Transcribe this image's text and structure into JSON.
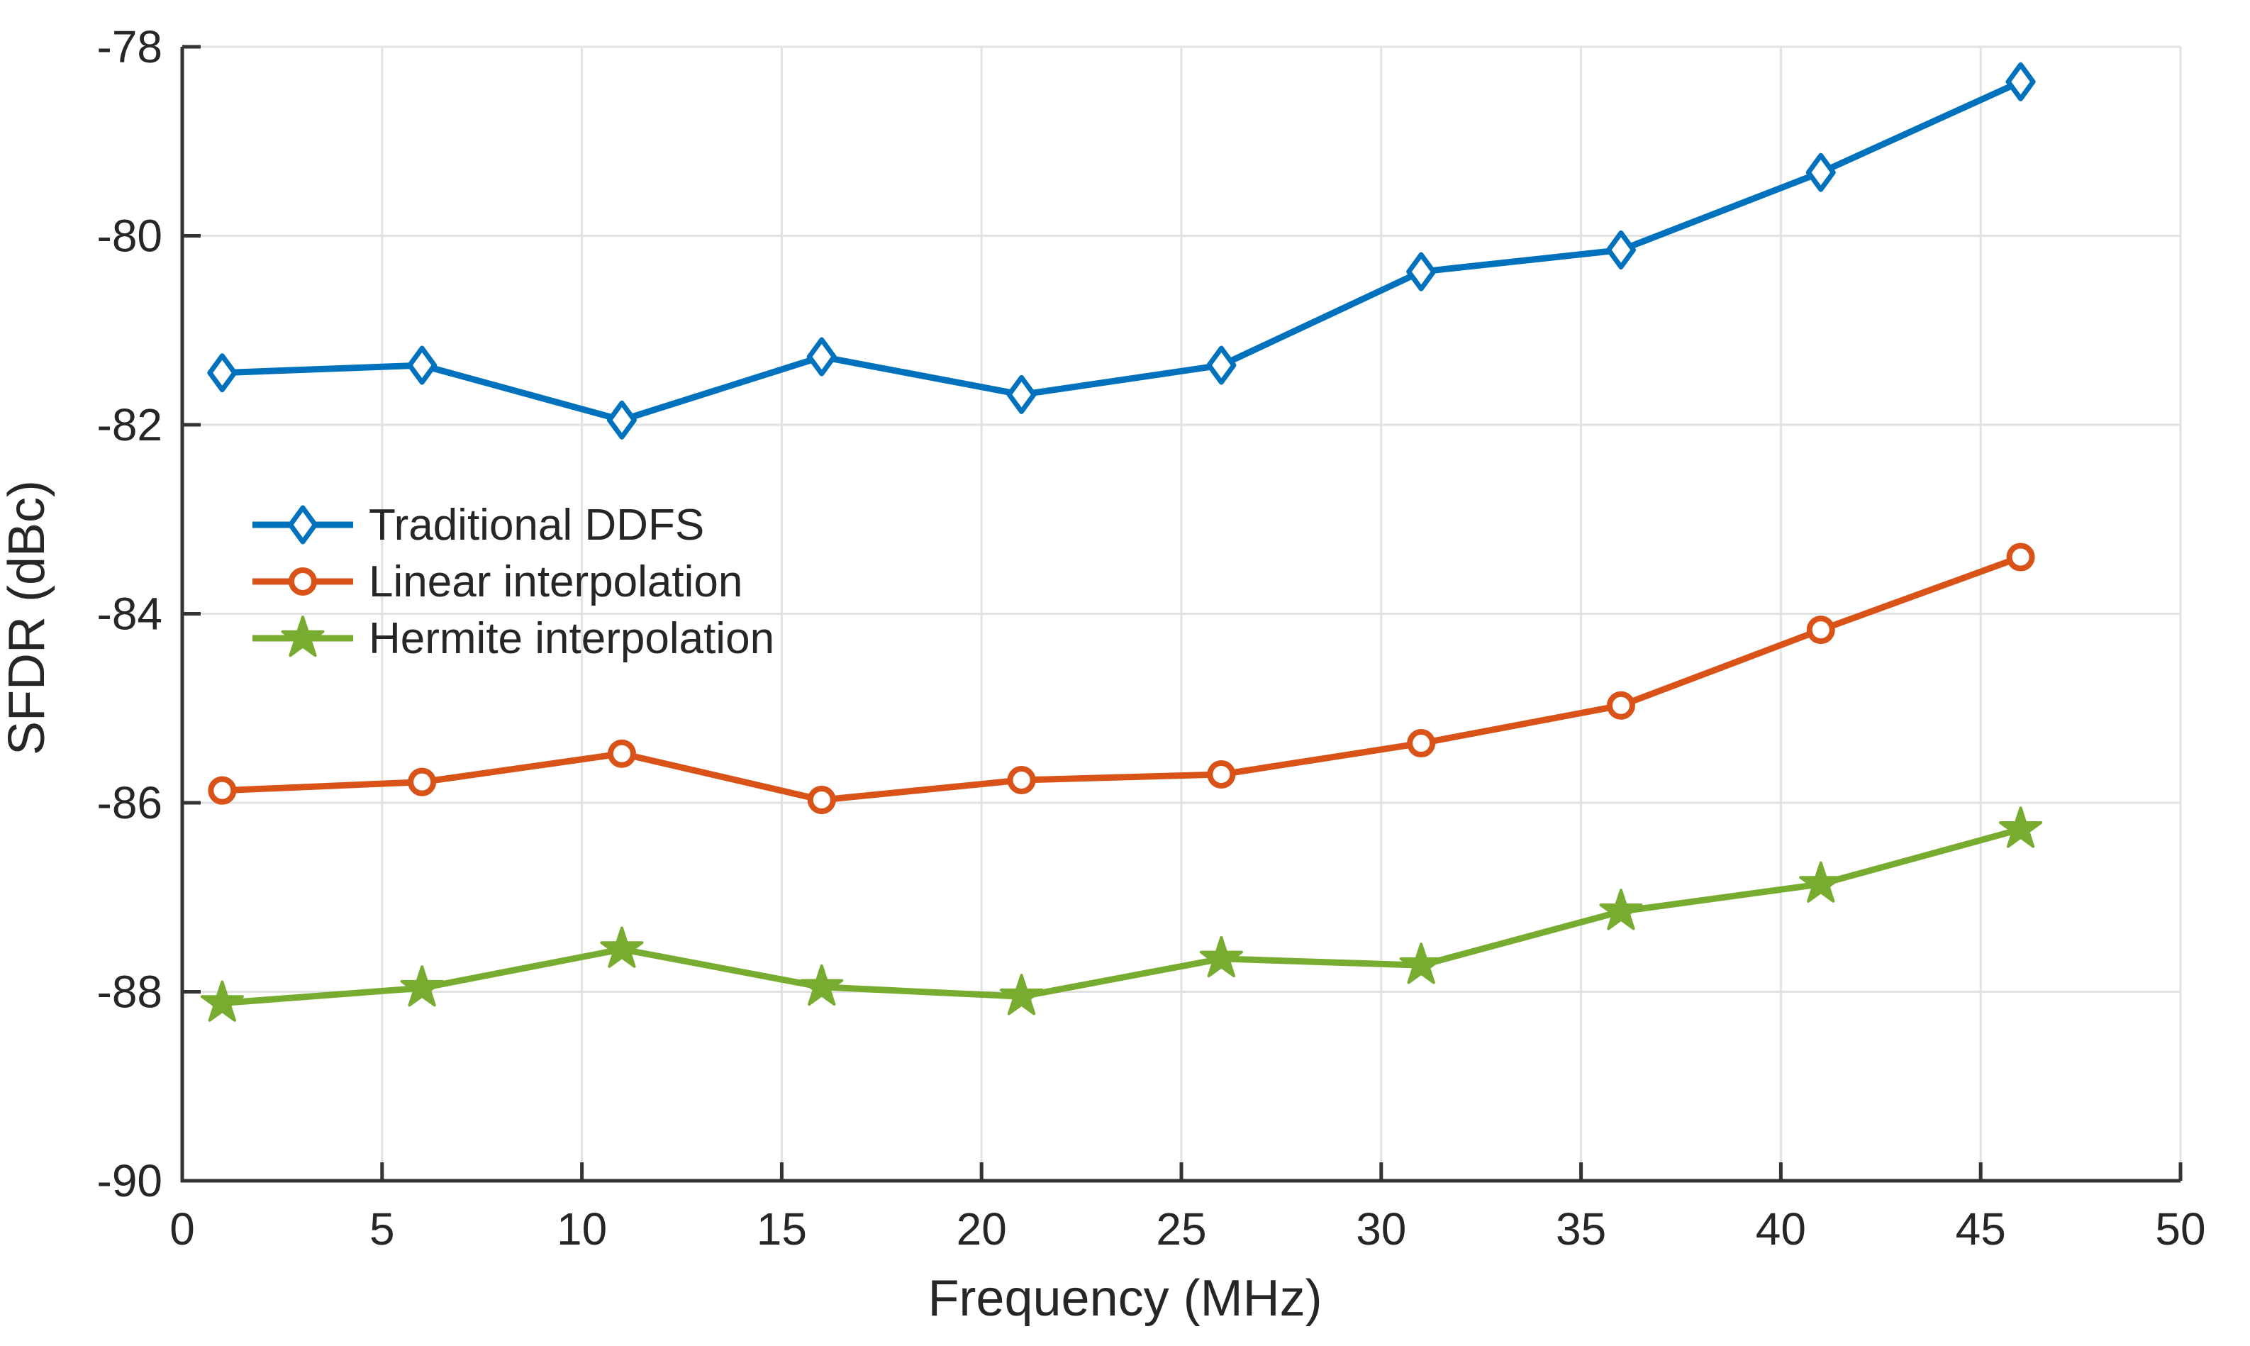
{
  "figure": {
    "background": "#ffffff",
    "grid_color": "#e2e2e2",
    "spine_color": "#333333",
    "text_color": "#262626"
  },
  "chart_data": {
    "type": "line",
    "title": "",
    "xlabel": "Frequency (MHz)",
    "ylabel": "SFDR (dBc)",
    "xlim": [
      0,
      50
    ],
    "ylim": [
      -90,
      -78
    ],
    "x_ticks": [
      0,
      5,
      10,
      15,
      20,
      25,
      30,
      35,
      40,
      45,
      50
    ],
    "y_ticks": [
      -90,
      -88,
      -86,
      -84,
      -82,
      -80,
      -78
    ],
    "grid": true,
    "legend_position": "inside-upper-left",
    "x": [
      1,
      6,
      11,
      16,
      21,
      26,
      31,
      36,
      41,
      46
    ],
    "series": [
      {
        "name": "Traditional DDFS",
        "color": "#0072BD",
        "marker": "diamond",
        "values": [
          -81.45,
          -81.37,
          -81.95,
          -81.28,
          -81.68,
          -81.37,
          -80.38,
          -80.15,
          -79.33,
          -78.37
        ]
      },
      {
        "name": "Linear interpolation",
        "color": "#D95319",
        "marker": "circle",
        "values": [
          -85.87,
          -85.78,
          -85.48,
          -85.97,
          -85.76,
          -85.7,
          -85.37,
          -84.97,
          -84.17,
          -83.4
        ]
      },
      {
        "name": "Hermite interpolation",
        "color": "#77AC30",
        "marker": "star",
        "values": [
          -88.12,
          -87.96,
          -87.55,
          -87.95,
          -88.05,
          -87.65,
          -87.72,
          -87.15,
          -86.86,
          -86.28
        ]
      }
    ]
  }
}
